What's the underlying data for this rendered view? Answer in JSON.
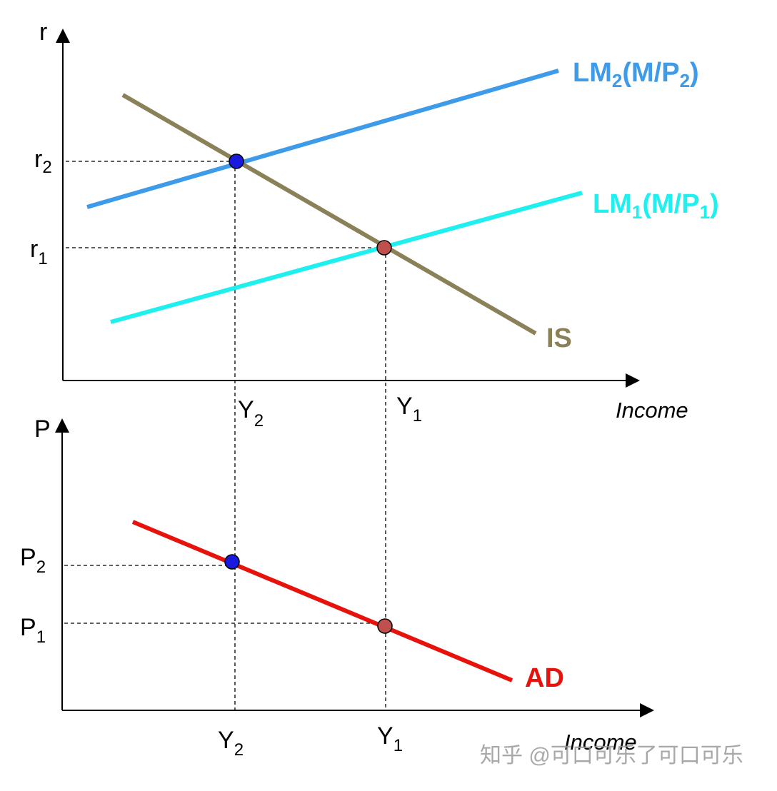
{
  "top_panel": {
    "y_axis_label": "r",
    "x_axis_label": "Income",
    "r_labels": [
      {
        "base": "r",
        "sub": "2"
      },
      {
        "base": "r",
        "sub": "1"
      }
    ],
    "y_labels": [
      {
        "base": "Y",
        "sub": "2"
      },
      {
        "base": "Y",
        "sub": "1"
      }
    ],
    "lm2_label": [
      "LM",
      "2",
      "(M/P",
      "2",
      ")"
    ],
    "lm1_label": [
      "LM",
      "1",
      "(M/P",
      "1",
      ")"
    ],
    "is_label": "IS"
  },
  "bottom_panel": {
    "y_axis_label": "P",
    "x_axis_label": "Income",
    "p_labels": [
      {
        "base": "P",
        "sub": "2"
      },
      {
        "base": "P",
        "sub": "1"
      }
    ],
    "y_labels": [
      {
        "base": "Y",
        "sub": "2"
      },
      {
        "base": "Y",
        "sub": "1"
      }
    ],
    "ad_label": "AD"
  },
  "watermark": "知乎 @可口可乐了可口可乐"
}
